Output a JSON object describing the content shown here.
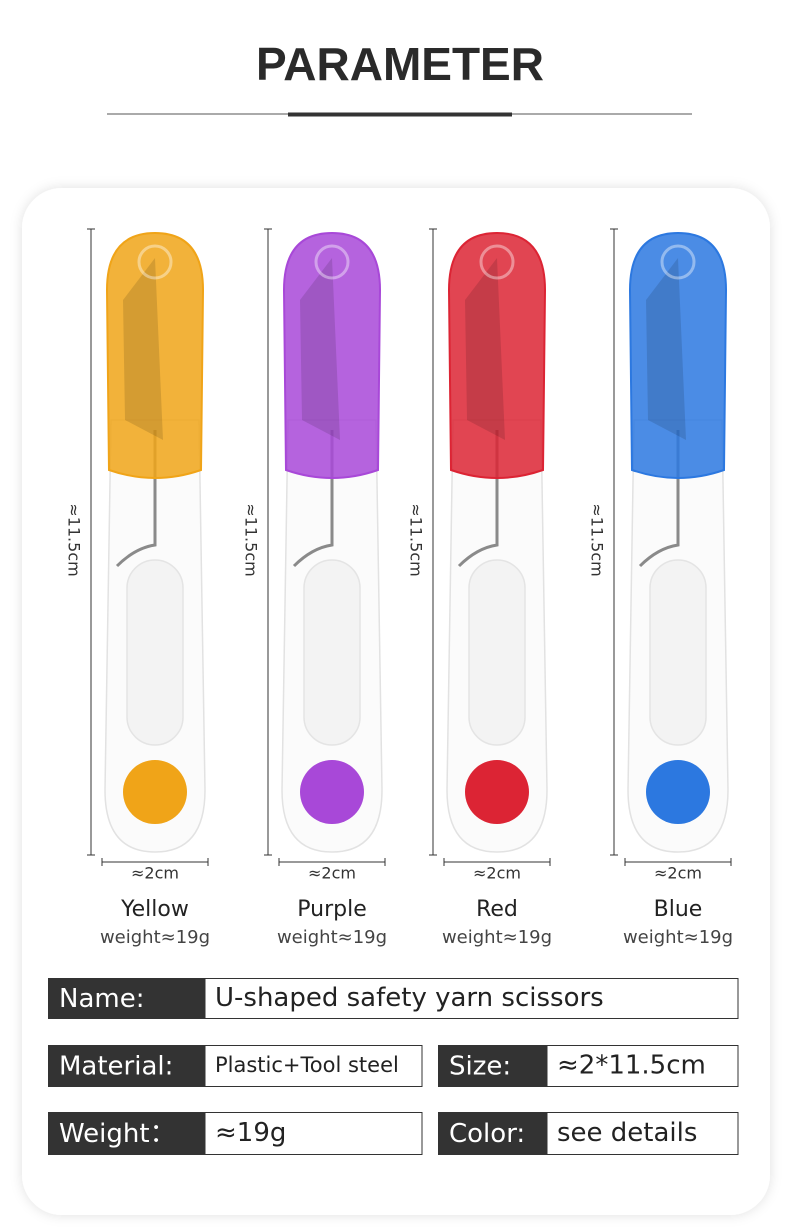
{
  "title": "PARAMETER",
  "products": [
    {
      "name": "Yellow",
      "weight": "weight≈19g",
      "height": "≈11.5cm",
      "width": "≈2cm",
      "color": "#f0a418"
    },
    {
      "name": "Purple",
      "weight": "weight≈19g",
      "height": "≈11.5cm",
      "width": "≈2cm",
      "color": "#a848d8"
    },
    {
      "name": "Red",
      "weight": "weight≈19g",
      "height": "≈11.5cm",
      "width": "≈2cm",
      "color": "#dc2434"
    },
    {
      "name": "Blue",
      "weight": "weight≈19g",
      "height": "≈11.5cm",
      "width": "≈2cm",
      "color": "#2c78e0"
    }
  ],
  "specs": [
    {
      "label": "Name:",
      "value": "U-shaped safety yarn scissors"
    },
    {
      "label": "Material:",
      "value": "Plastic+Tool steel"
    },
    {
      "label": "Size:",
      "value": "≈2*11.5cm"
    },
    {
      "label": "Weight：",
      "value": "≈19g"
    },
    {
      "label": "Color:",
      "value": "see details"
    }
  ]
}
